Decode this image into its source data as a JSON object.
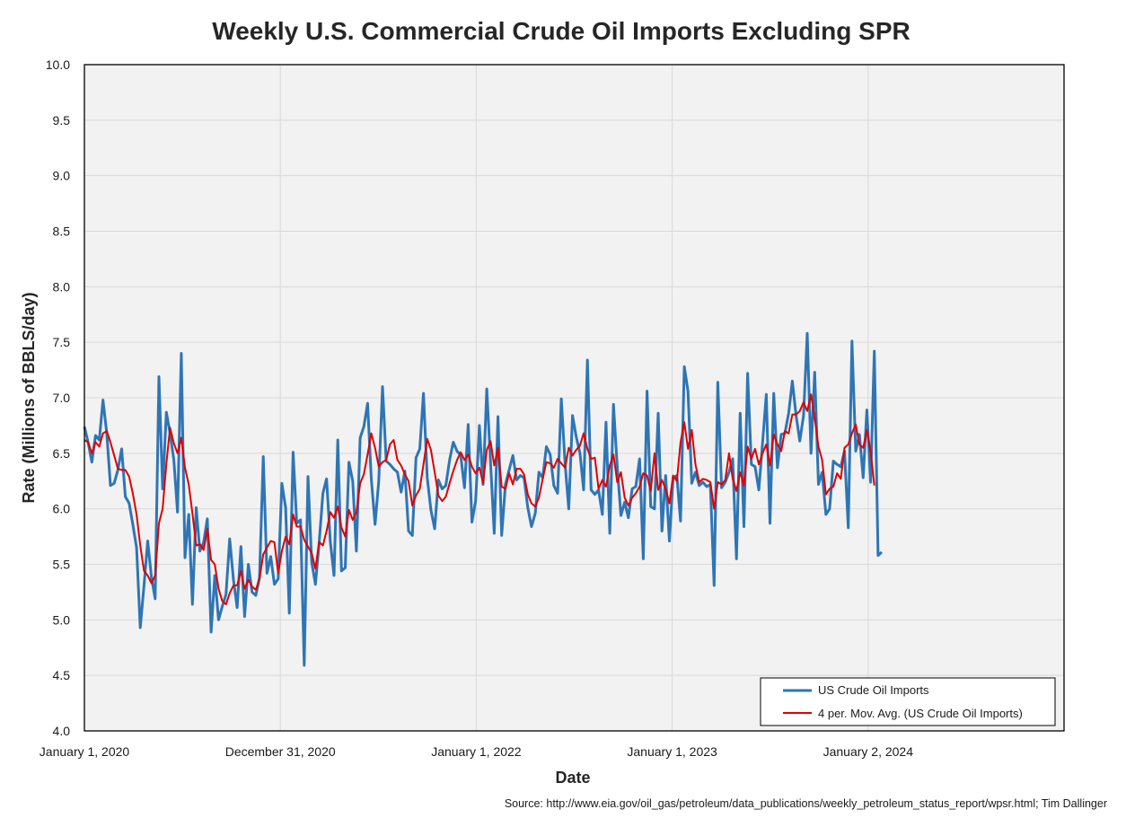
{
  "chart_data": {
    "type": "line",
    "title": "Weekly U.S. Commercial Crude Oil Imports Excluding SPR",
    "xlabel": "Date",
    "ylabel": "Rate (Millions of BBLS/day)",
    "source": "Source: http://www.eia.gov/oil_gas/petroleum/data_publications/weekly_petroleum_status_report/wpsr.html; Tim Dallinger",
    "ylim": [
      4.0,
      10.0
    ],
    "y_ticks": [
      "4.0",
      "4.5",
      "5.0",
      "5.5",
      "6.0",
      "6.5",
      "7.0",
      "7.5",
      "8.0",
      "8.5",
      "9.0",
      "9.5",
      "10.0"
    ],
    "x_ticks": [
      "January 1, 2020",
      "December 31, 2020",
      "January 1, 2022",
      "January 1, 2023",
      "January 2, 2024"
    ],
    "grid": true,
    "legend_position": "bottom-right",
    "series": [
      {
        "name": "US Crude Oil Imports",
        "color": "#2e75b6",
        "values": [
          6.74,
          6.6,
          6.42,
          6.66,
          6.62,
          6.98,
          6.68,
          6.21,
          6.23,
          6.35,
          6.54,
          6.11,
          6.05,
          5.86,
          5.65,
          4.93,
          5.31,
          5.71,
          5.38,
          5.19,
          7.19,
          6.18,
          6.87,
          6.68,
          6.44,
          5.97,
          7.4,
          5.56,
          5.95,
          5.14,
          6.01,
          5.62,
          5.7,
          5.91,
          4.89,
          5.4,
          5.0,
          5.12,
          5.23,
          5.73,
          5.36,
          5.11,
          5.66,
          5.03,
          5.5,
          5.25,
          5.22,
          5.38,
          6.47,
          5.42,
          5.57,
          5.32,
          5.37,
          6.23,
          6.01,
          5.06,
          6.51,
          5.87,
          5.9,
          4.59,
          6.29,
          5.52,
          5.32,
          5.69,
          6.14,
          6.27,
          5.7,
          5.4,
          6.62,
          5.44,
          5.47,
          6.42,
          6.25,
          5.62,
          6.64,
          6.74,
          6.95,
          6.27,
          5.86,
          6.25,
          7.1,
          6.43,
          6.4,
          6.36,
          6.33,
          6.15,
          6.34,
          5.8,
          5.76,
          6.46,
          6.54,
          7.04,
          6.28,
          5.99,
          5.82,
          6.26,
          6.18,
          6.21,
          6.44,
          6.6,
          6.52,
          6.48,
          6.19,
          6.76,
          5.88,
          6.07,
          6.75,
          6.22,
          7.08,
          6.42,
          5.78,
          6.83,
          5.76,
          6.22,
          6.35,
          6.48,
          6.26,
          6.3,
          6.28,
          6.01,
          5.84,
          5.96,
          6.33,
          6.28,
          6.56,
          6.49,
          6.21,
          6.14,
          6.99,
          6.41,
          6.0,
          6.84,
          6.65,
          6.5,
          6.17,
          7.34,
          6.17,
          6.13,
          6.17,
          5.95,
          6.78,
          5.78,
          6.94,
          6.38,
          5.94,
          6.06,
          5.92,
          6.18,
          6.2,
          6.45,
          5.55,
          7.06,
          6.02,
          6.0,
          6.86,
          5.8,
          6.3,
          5.71,
          6.28,
          6.3,
          5.89,
          7.28,
          7.06,
          6.23,
          6.33,
          6.21,
          6.24,
          6.2,
          6.22,
          5.31,
          7.14,
          6.19,
          6.24,
          6.33,
          6.45,
          5.55,
          6.86,
          5.84,
          7.22,
          6.4,
          6.38,
          6.17,
          6.59,
          7.03,
          5.87,
          7.04,
          6.37,
          6.67,
          6.68,
          6.86,
          7.15,
          6.84,
          6.61,
          6.84,
          7.58,
          6.5,
          7.23,
          6.22,
          6.33,
          5.95,
          6.0,
          6.43,
          6.4,
          6.38,
          6.52,
          5.83,
          7.51,
          6.52,
          6.67,
          6.28,
          6.89,
          6.24,
          7.42,
          5.58,
          5.61
        ],
        "overlay_note": ""
      },
      {
        "name": "4 per. Mov. Avg. (US Crude Oil Imports)",
        "color": "#e00000",
        "values": [
          6.62,
          6.6,
          6.5,
          6.6,
          6.56,
          6.68,
          6.7,
          6.6,
          6.48,
          6.36,
          6.35,
          6.35,
          6.29,
          6.14,
          5.95,
          5.67,
          5.44,
          5.4,
          5.33,
          5.4,
          5.87,
          6.0,
          6.41,
          6.73,
          6.59,
          6.5,
          6.64,
          6.37,
          6.22,
          5.96,
          5.67,
          5.68,
          5.63,
          5.82,
          5.54,
          5.5,
          5.28,
          5.17,
          5.14,
          5.24,
          5.31,
          5.31,
          5.44,
          5.28,
          5.36,
          5.3,
          5.27,
          5.37,
          5.59,
          5.65,
          5.71,
          5.7,
          5.42,
          5.62,
          5.75,
          5.68,
          5.95,
          5.84,
          5.84,
          5.72,
          5.66,
          5.6,
          5.46,
          5.7,
          5.67,
          5.8,
          5.97,
          5.92,
          6.02,
          5.83,
          5.75,
          5.99,
          5.9,
          5.97,
          6.23,
          6.31,
          6.49,
          6.68,
          6.55,
          6.38,
          6.42,
          6.44,
          6.58,
          6.62,
          6.44,
          6.39,
          6.31,
          6.25,
          6.03,
          6.12,
          6.18,
          6.4,
          6.63,
          6.53,
          6.33,
          6.12,
          6.07,
          6.11,
          6.23,
          6.34,
          6.44,
          6.51,
          6.44,
          6.49,
          6.38,
          6.32,
          6.37,
          6.23,
          6.53,
          6.61,
          6.39,
          6.55,
          6.2,
          6.18,
          6.32,
          6.22,
          6.36,
          6.36,
          6.31,
          6.13,
          6.05,
          6.02,
          6.1,
          6.27,
          6.42,
          6.41,
          6.37,
          6.45,
          6.41,
          6.37,
          6.55,
          6.48,
          6.53,
          6.57,
          6.68,
          6.54,
          6.45,
          6.46,
          6.18,
          6.26,
          6.2,
          6.39,
          6.49,
          6.24,
          6.33,
          6.1,
          6.03,
          6.1,
          6.14,
          6.2,
          6.32,
          6.3,
          6.16,
          6.5,
          6.17,
          6.26,
          6.18,
          6.05,
          6.3,
          6.25,
          6.6,
          6.78,
          6.54,
          6.71,
          6.4,
          6.24,
          6.27,
          6.26,
          6.24,
          6.0,
          6.24,
          6.22,
          6.26,
          6.5,
          6.27,
          6.16,
          6.33,
          6.21,
          6.56,
          6.45,
          6.54,
          6.4,
          6.5,
          6.58,
          6.39,
          6.67,
          6.58,
          6.52,
          6.7,
          6.68,
          6.85,
          6.85,
          6.88,
          6.96,
          6.88,
          7.03,
          6.82,
          6.56,
          6.44,
          6.13,
          6.18,
          6.2,
          6.32,
          6.27,
          6.55,
          6.58,
          6.68,
          6.76,
          6.58,
          6.55,
          6.71,
          6.52,
          6.21
        ],
        "overlay_note": ""
      }
    ]
  }
}
